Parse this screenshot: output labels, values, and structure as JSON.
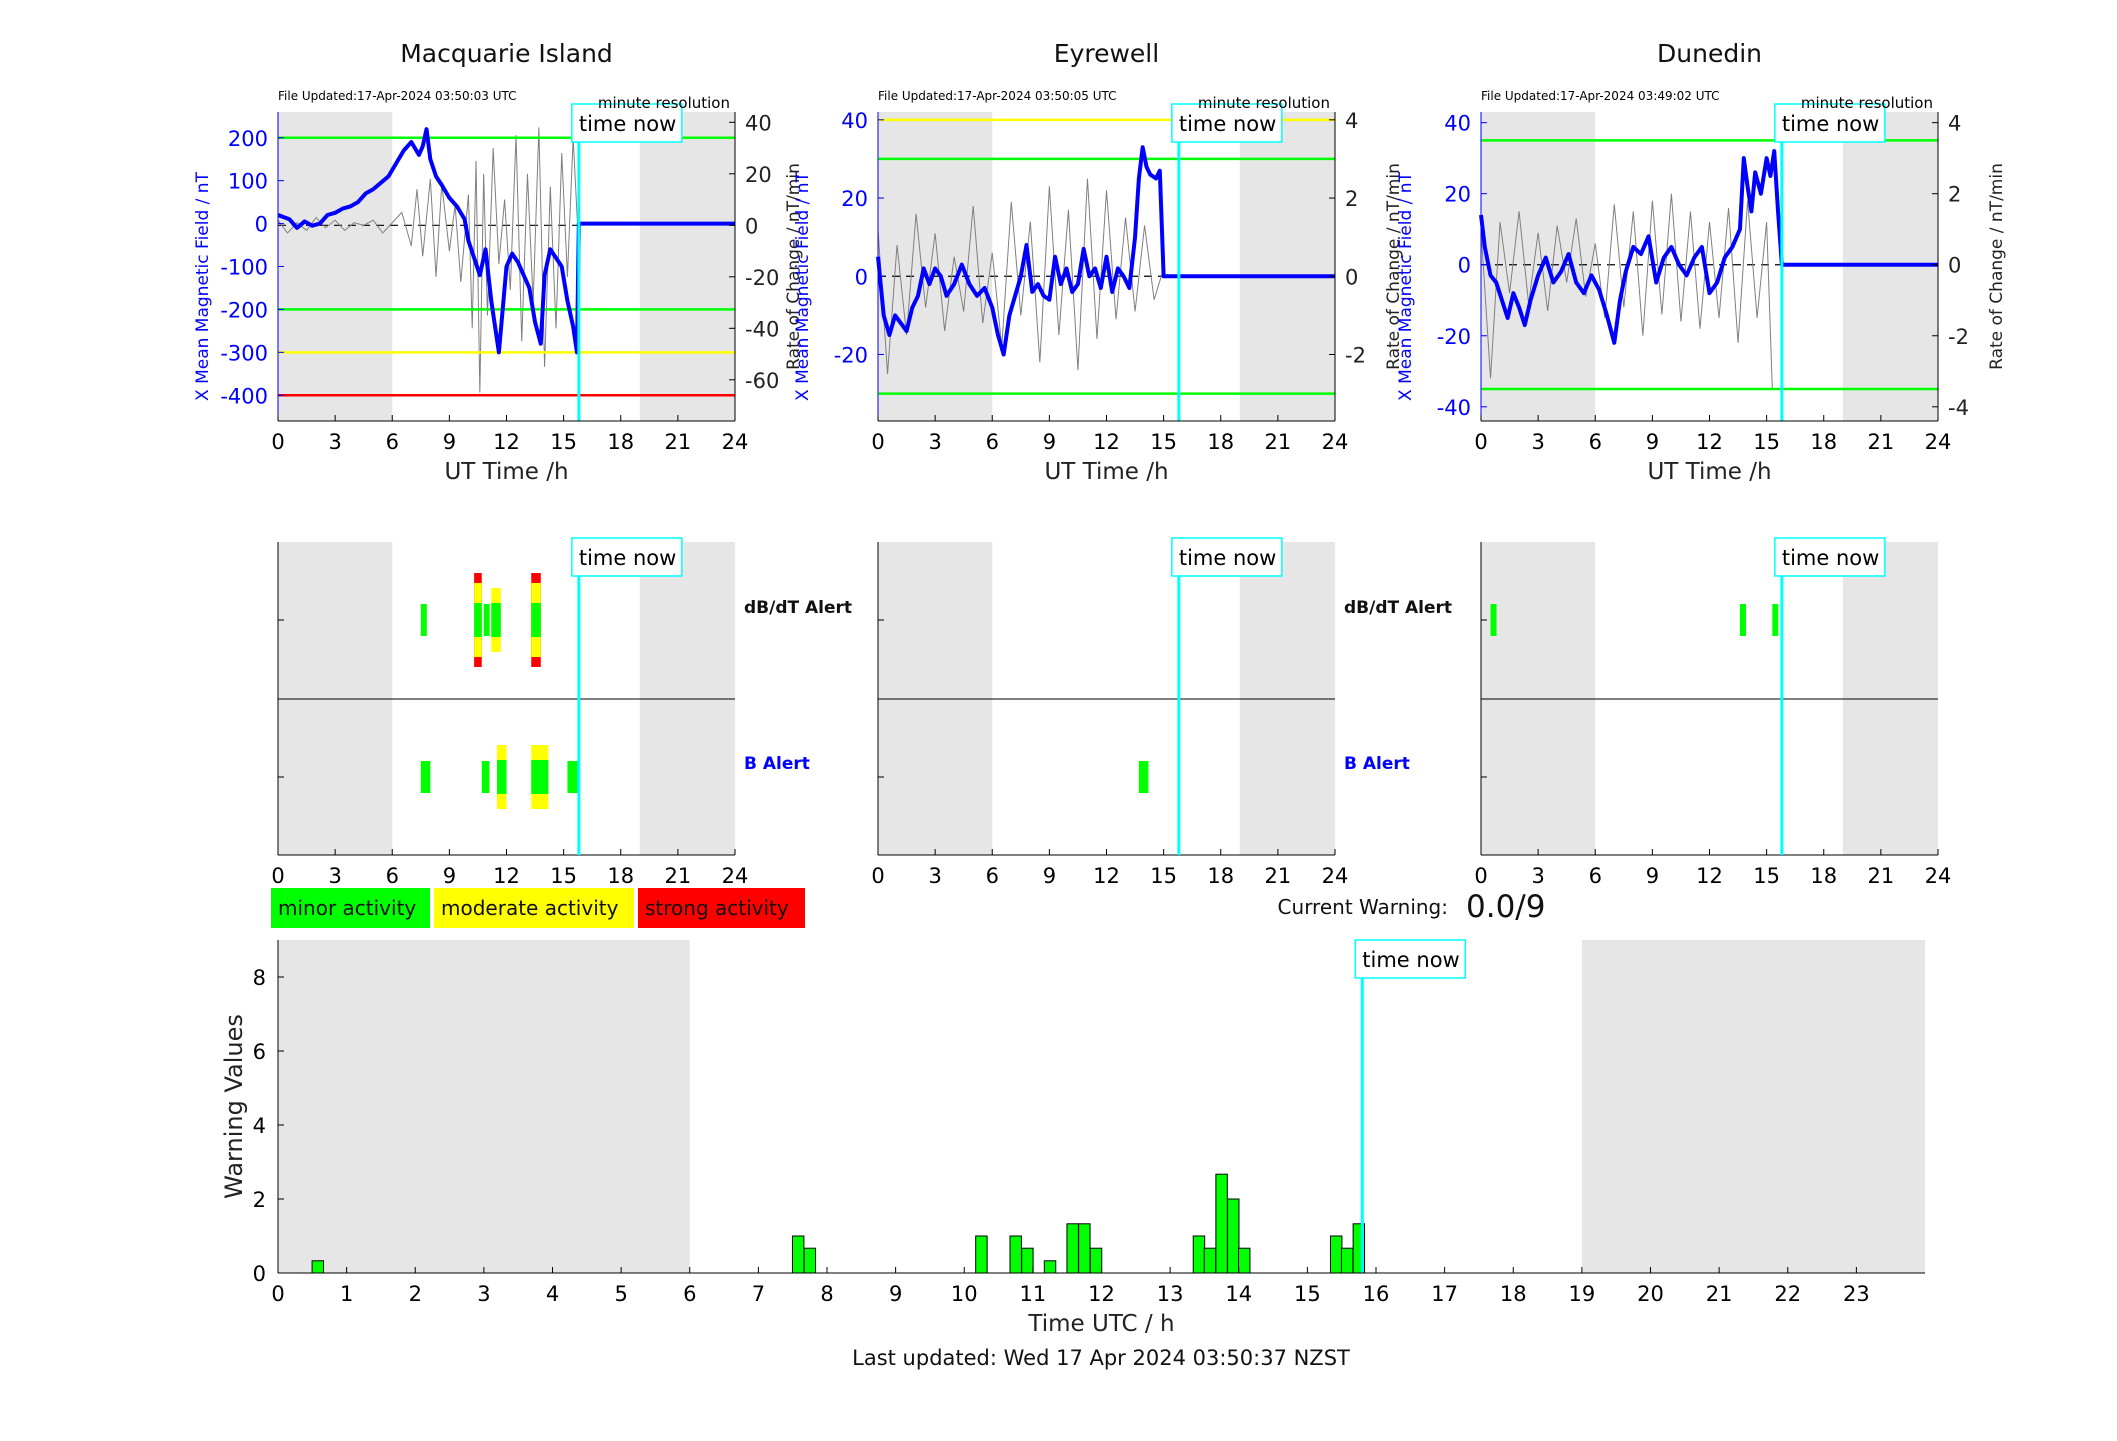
{
  "minute_resolution": "minute resolution",
  "time_now_label": "time now",
  "current_warning": {
    "label": "Current Warning:",
    "value": "0.0/9"
  },
  "legend": [
    {
      "label": "minor activity",
      "color": "#00ff00"
    },
    {
      "label": "moderate activity",
      "color": "#ffff00"
    },
    {
      "label": "strong activity",
      "color": "#ff0000"
    }
  ],
  "alert_labels": {
    "db": "dB/dT Alert",
    "b": "B Alert"
  },
  "footer": "Last updated: Wed 17 Apr 2024 03:50:37 NZST",
  "colors": {
    "field": "#0000ff",
    "rate": "#808080",
    "now": "#00ffff",
    "night": "#e6e6e6",
    "minor": "#00ff00",
    "moderate": "#ffff00",
    "strong": "#ff0000"
  },
  "chart_data": [
    {
      "type": "line",
      "title": "Macquarie Island",
      "file_updated": "File Updated:17-Apr-2024 03:50:03 UTC",
      "xlabel": "UT Time /h",
      "ylabel_left": "X Mean Magnetic Field / nT",
      "ylabel_right": "Rate of Change / nT/min",
      "xlim": [
        0,
        24
      ],
      "xticks": [
        "0",
        "3",
        "6",
        "9",
        "12",
        "15",
        "18",
        "21",
        "24"
      ],
      "ylim_left": [
        -460,
        260
      ],
      "yticks_left": [
        "200",
        "100",
        "0",
        "-100",
        "-200",
        "-300",
        "-400"
      ],
      "ylim_right": [
        -76,
        44
      ],
      "yticks_right": [
        "40",
        "20",
        "0",
        "-20",
        "-40",
        "-60"
      ],
      "night_shading": [
        [
          0,
          6
        ],
        [
          19,
          24
        ]
      ],
      "time_now": 15.8,
      "thresholds": [
        {
          "value": 200,
          "color": "#00ff00"
        },
        {
          "value": -200,
          "color": "#00ff00"
        },
        {
          "value": -300,
          "color": "#ffff00"
        },
        {
          "value": -400,
          "color": "#ff0000"
        }
      ],
      "series": [
        {
          "x": [
            0,
            0.3,
            0.6,
            1,
            1.4,
            1.8,
            2.2,
            2.6,
            3,
            3.4,
            3.8,
            4.2,
            4.6,
            5,
            5.4,
            5.8,
            6.2,
            6.6,
            7,
            7.4,
            7.6,
            7.8,
            8,
            8.3,
            8.6,
            9,
            9.4,
            9.8,
            10,
            10.3,
            10.6,
            10.9,
            11.2,
            11.4,
            11.6,
            12,
            12.3,
            12.6,
            12.9,
            13.2,
            13.5,
            13.8,
            14,
            14.3,
            14.6,
            14.9,
            15.2,
            15.5,
            15.7,
            15.8,
            16,
            17,
            18,
            19,
            20,
            21,
            22,
            23,
            24
          ],
          "y": [
            20,
            15,
            10,
            -10,
            5,
            -5,
            0,
            20,
            25,
            35,
            40,
            50,
            70,
            80,
            95,
            110,
            140,
            170,
            190,
            160,
            180,
            220,
            150,
            110,
            90,
            60,
            40,
            10,
            -40,
            -80,
            -120,
            -60,
            -180,
            -240,
            -300,
            -100,
            -70,
            -90,
            -120,
            -150,
            -230,
            -280,
            -120,
            -60,
            -80,
            -100,
            -180,
            -240,
            -300,
            0,
            0,
            0,
            0,
            0,
            0,
            0,
            0,
            0,
            0
          ]
        }
      ],
      "rate_series": {
        "x": [
          0,
          0.5,
          1,
          1.5,
          2,
          2.5,
          3,
          3.5,
          4,
          4.5,
          5,
          5.5,
          6,
          6.5,
          7,
          7.3,
          7.6,
          8,
          8.3,
          8.6,
          9,
          9.3,
          9.6,
          10,
          10.2,
          10.4,
          10.6,
          10.8,
          11,
          11.3,
          11.6,
          11.9,
          12.2,
          12.5,
          12.8,
          13.1,
          13.4,
          13.7,
          14,
          14.3,
          14.6,
          14.9,
          15.2,
          15.5,
          15.8
        ],
        "y": [
          2,
          -3,
          1,
          -2,
          3,
          -1,
          2,
          -2,
          1,
          0,
          2,
          -3,
          1,
          5,
          -8,
          14,
          -12,
          18,
          -20,
          16,
          -10,
          8,
          -22,
          12,
          -40,
          25,
          -65,
          20,
          -35,
          30,
          -15,
          10,
          -25,
          35,
          -45,
          20,
          -30,
          38,
          -55,
          15,
          -40,
          28,
          -20,
          34,
          -10
        ]
      }
    },
    {
      "type": "line",
      "title": "Eyrewell",
      "file_updated": "File Updated:17-Apr-2024 03:50:05 UTC",
      "xlabel": "UT Time /h",
      "ylabel_left": "X Mean Magnetic Field / nT",
      "ylabel_right": "Rate of Change / nT/min",
      "xlim": [
        0,
        24
      ],
      "xticks": [
        "0",
        "3",
        "6",
        "9",
        "12",
        "15",
        "18",
        "21",
        "24"
      ],
      "ylim_left": [
        -37,
        42
      ],
      "yticks_left": [
        "40",
        "20",
        "0",
        "-20"
      ],
      "ylim_right": [
        -3.7,
        4.2
      ],
      "yticks_right": [
        "4",
        "2",
        "0",
        "-2"
      ],
      "night_shading": [
        [
          0,
          6
        ],
        [
          19,
          24
        ]
      ],
      "time_now": 15.8,
      "thresholds": [
        {
          "value": 40,
          "color": "#ffff00"
        },
        {
          "value": 30,
          "color": "#00ff00"
        },
        {
          "value": -30,
          "color": "#00ff00"
        }
      ],
      "series": [
        {
          "x": [
            0,
            0.3,
            0.6,
            0.9,
            1.2,
            1.5,
            1.8,
            2.1,
            2.4,
            2.7,
            3,
            3.3,
            3.6,
            4,
            4.4,
            4.8,
            5.2,
            5.6,
            6,
            6.3,
            6.6,
            6.9,
            7.2,
            7.5,
            7.8,
            8.1,
            8.4,
            8.7,
            9,
            9.3,
            9.6,
            9.9,
            10.2,
            10.5,
            10.8,
            11.1,
            11.4,
            11.7,
            12,
            12.3,
            12.6,
            12.9,
            13.2,
            13.5,
            13.7,
            13.9,
            14.1,
            14.3,
            14.6,
            14.8,
            15,
            15.2,
            15.5,
            16,
            18,
            20,
            22,
            24
          ],
          "y": [
            5,
            -10,
            -15,
            -10,
            -12,
            -14,
            -8,
            -5,
            2,
            -2,
            2,
            0,
            -5,
            -2,
            3,
            -2,
            -5,
            -3,
            -8,
            -15,
            -20,
            -10,
            -5,
            0,
            8,
            -4,
            -2,
            -5,
            -6,
            5,
            -2,
            2,
            -4,
            -2,
            7,
            0,
            2,
            -3,
            5,
            -4,
            2,
            0,
            -3,
            10,
            25,
            33,
            28,
            26,
            25,
            27,
            0,
            0,
            0,
            0,
            0,
            0,
            0,
            0
          ]
        }
      ],
      "rate_series": {
        "x": [
          0,
          0.5,
          1,
          1.5,
          2,
          2.5,
          3,
          3.5,
          4,
          4.5,
          5,
          5.5,
          6,
          6.5,
          7,
          7.5,
          8,
          8.5,
          9,
          9.5,
          10,
          10.5,
          11,
          11.5,
          12,
          12.5,
          13,
          13.5,
          14,
          14.5,
          15
        ],
        "y": [
          1.2,
          -2.5,
          0.8,
          -1.5,
          1.6,
          -0.8,
          1.1,
          -1.4,
          0.5,
          -0.9,
          1.8,
          -1.2,
          0.6,
          -1.8,
          1.9,
          -1,
          1.4,
          -2.2,
          2.3,
          -1.5,
          1.7,
          -2.4,
          2.5,
          -1.6,
          2.2,
          -1.1,
          1.5,
          -0.9,
          1.3,
          -0.6,
          0.2
        ]
      }
    },
    {
      "type": "line",
      "title": "Dunedin",
      "file_updated": "File Updated:17-Apr-2024 03:49:02 UTC",
      "xlabel": "UT Time /h",
      "ylabel_left": "X Mean Magnetic Field / nT",
      "ylabel_right": "Rate of Change / nT/min",
      "xlim": [
        0,
        24
      ],
      "xticks": [
        "0",
        "3",
        "6",
        "9",
        "12",
        "15",
        "18",
        "21",
        "24"
      ],
      "ylim_left": [
        -44,
        43
      ],
      "yticks_left": [
        "40",
        "20",
        "0",
        "-20",
        "-40"
      ],
      "ylim_right": [
        -4.4,
        4.3
      ],
      "yticks_right": [
        "4",
        "2",
        "0",
        "-2",
        "-4"
      ],
      "night_shading": [
        [
          0,
          6
        ],
        [
          19,
          24
        ]
      ],
      "time_now": 15.8,
      "thresholds": [
        {
          "value": 35,
          "color": "#00ff00"
        },
        {
          "value": -35,
          "color": "#00ff00"
        }
      ],
      "series": [
        {
          "x": [
            0,
            0.2,
            0.5,
            0.8,
            1.1,
            1.4,
            1.7,
            2,
            2.3,
            2.6,
            3,
            3.4,
            3.8,
            4.2,
            4.6,
            5,
            5.4,
            5.8,
            6.2,
            6.6,
            7,
            7.3,
            7.6,
            8,
            8.4,
            8.8,
            9.2,
            9.6,
            10,
            10.4,
            10.8,
            11.2,
            11.6,
            12,
            12.4,
            12.8,
            13.2,
            13.6,
            13.8,
            14,
            14.2,
            14.4,
            14.7,
            15,
            15.2,
            15.4,
            15.6,
            15.8,
            16,
            18,
            20,
            22,
            24
          ],
          "y": [
            14,
            5,
            -3,
            -5,
            -10,
            -15,
            -8,
            -12,
            -17,
            -10,
            -3,
            2,
            -5,
            -2,
            3,
            -5,
            -8,
            -3,
            -7,
            -14,
            -22,
            -10,
            -2,
            5,
            3,
            8,
            -5,
            2,
            5,
            0,
            -3,
            2,
            5,
            -8,
            -5,
            2,
            5,
            10,
            30,
            22,
            15,
            26,
            20,
            30,
            25,
            32,
            15,
            0,
            0,
            0,
            0,
            0,
            0
          ]
        }
      ],
      "rate_series": {
        "x": [
          0,
          0.5,
          1,
          1.5,
          2,
          2.5,
          3,
          3.5,
          4,
          4.5,
          5,
          5.5,
          6,
          6.5,
          7,
          7.5,
          8,
          8.5,
          9,
          9.5,
          10,
          10.5,
          11,
          11.5,
          12,
          12.5,
          13,
          13.5,
          14,
          14.5,
          15,
          15.3
        ],
        "y": [
          1,
          -3.2,
          1.2,
          -0.8,
          1.5,
          -1.1,
          0.9,
          -1.3,
          1.1,
          -0.5,
          1.3,
          -0.9,
          0.6,
          -1.5,
          1.7,
          -1.2,
          1.5,
          -2,
          1.8,
          -1.4,
          2,
          -1.6,
          1.5,
          -1.8,
          1.2,
          -1.5,
          1.6,
          -2.2,
          1.8,
          -1.5,
          1.2,
          -3.5
        ]
      }
    },
    {
      "type": "timeline",
      "station": "Macquarie Island",
      "xlim": [
        0,
        24
      ],
      "xticks": [
        "0",
        "3",
        "6",
        "9",
        "12",
        "15",
        "18",
        "21",
        "24"
      ],
      "night_shading": [
        [
          0,
          6
        ],
        [
          19,
          24
        ]
      ],
      "time_now": 15.8,
      "db_alerts": [
        {
          "start": 7.5,
          "end": 7.8,
          "level": "minor"
        },
        {
          "start": 10.3,
          "end": 10.7,
          "level": "strong"
        },
        {
          "start": 10.8,
          "end": 11.1,
          "level": "minor"
        },
        {
          "start": 11.2,
          "end": 11.7,
          "level": "moderate"
        },
        {
          "start": 13.3,
          "end": 13.8,
          "level": "strong"
        }
      ],
      "b_alerts": [
        {
          "start": 7.5,
          "end": 8.0,
          "level": "minor"
        },
        {
          "start": 10.7,
          "end": 11.1,
          "level": "minor"
        },
        {
          "start": 11.5,
          "end": 12.0,
          "level": "moderate"
        },
        {
          "start": 13.3,
          "end": 14.2,
          "level": "moderate"
        },
        {
          "start": 15.2,
          "end": 15.8,
          "level": "minor"
        }
      ]
    },
    {
      "type": "timeline",
      "station": "Eyrewell",
      "xlim": [
        0,
        24
      ],
      "xticks": [
        "0",
        "3",
        "6",
        "9",
        "12",
        "15",
        "18",
        "21",
        "24"
      ],
      "night_shading": [
        [
          0,
          6
        ],
        [
          19,
          24
        ]
      ],
      "time_now": 15.8,
      "db_alerts": [],
      "b_alerts": [
        {
          "start": 13.7,
          "end": 14.2,
          "level": "minor"
        }
      ]
    },
    {
      "type": "timeline",
      "station": "Dunedin",
      "xlim": [
        0,
        24
      ],
      "xticks": [
        "0",
        "3",
        "6",
        "9",
        "12",
        "15",
        "18",
        "21",
        "24"
      ],
      "night_shading": [
        [
          0,
          6
        ],
        [
          19,
          24
        ]
      ],
      "time_now": 15.8,
      "db_alerts": [
        {
          "start": 0.5,
          "end": 0.8,
          "level": "minor"
        },
        {
          "start": 13.6,
          "end": 13.9,
          "level": "minor"
        },
        {
          "start": 15.3,
          "end": 15.6,
          "level": "minor"
        }
      ],
      "b_alerts": []
    },
    {
      "type": "bar",
      "xlabel": "Time UTC / h",
      "ylabel": "Warning Values",
      "xlim": [
        0,
        24
      ],
      "xticks": [
        "0",
        "1",
        "2",
        "3",
        "4",
        "5",
        "6",
        "7",
        "8",
        "9",
        "10",
        "11",
        "12",
        "13",
        "14",
        "15",
        "16",
        "17",
        "18",
        "19",
        "20",
        "21",
        "22",
        "23"
      ],
      "ylim": [
        0,
        9
      ],
      "yticks": [
        "0",
        "2",
        "4",
        "6",
        "8"
      ],
      "night_shading": [
        [
          0,
          6
        ],
        [
          19,
          24
        ]
      ],
      "time_now": 15.8,
      "bar_color": "#00ff00",
      "x": [
        0.58,
        7.58,
        7.75,
        10.25,
        10.75,
        10.92,
        11.25,
        11.58,
        11.75,
        11.92,
        13.42,
        13.58,
        13.75,
        13.92,
        14.08,
        15.42,
        15.58,
        15.75
      ],
      "values": [
        0.33,
        1,
        0.67,
        1,
        1,
        0.67,
        0.33,
        1.33,
        1.33,
        0.67,
        1,
        0.67,
        2.67,
        2,
        0.67,
        1,
        0.67,
        1.33
      ]
    }
  ]
}
